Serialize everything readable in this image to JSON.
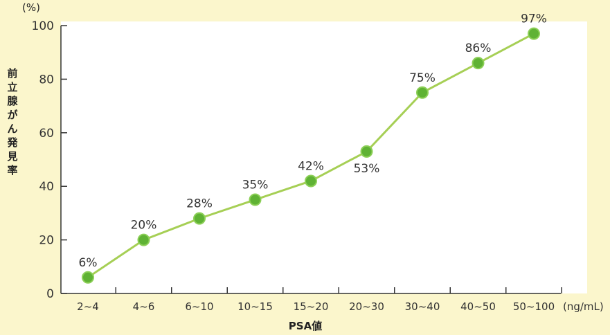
{
  "chart_data": {
    "type": "line",
    "categories": [
      "2~4",
      "4~6",
      "6~10",
      "10~15",
      "15~20",
      "20~30",
      "30~40",
      "40~50",
      "50~100"
    ],
    "series": [
      {
        "values": [
          6,
          20,
          28,
          35,
          42,
          53,
          75,
          86,
          97
        ]
      }
    ],
    "data_labels": [
      "6%",
      "20%",
      "28%",
      "35%",
      "42%",
      "53%",
      "75%",
      "86%",
      "97%"
    ],
    "xlabel": "PSA値",
    "xunit": "(ng/mL)",
    "ylabel": "前立腺がん発見率",
    "yunit": "(%)",
    "ylim": [
      0,
      100
    ],
    "yticks": [
      "0",
      "20",
      "40",
      "60",
      "80",
      "100"
    ],
    "grid": false,
    "colors": {
      "line": "#a6cf55",
      "marker": "#5fb234",
      "panel": "#ffffff",
      "background": "#fbf6cc"
    }
  }
}
